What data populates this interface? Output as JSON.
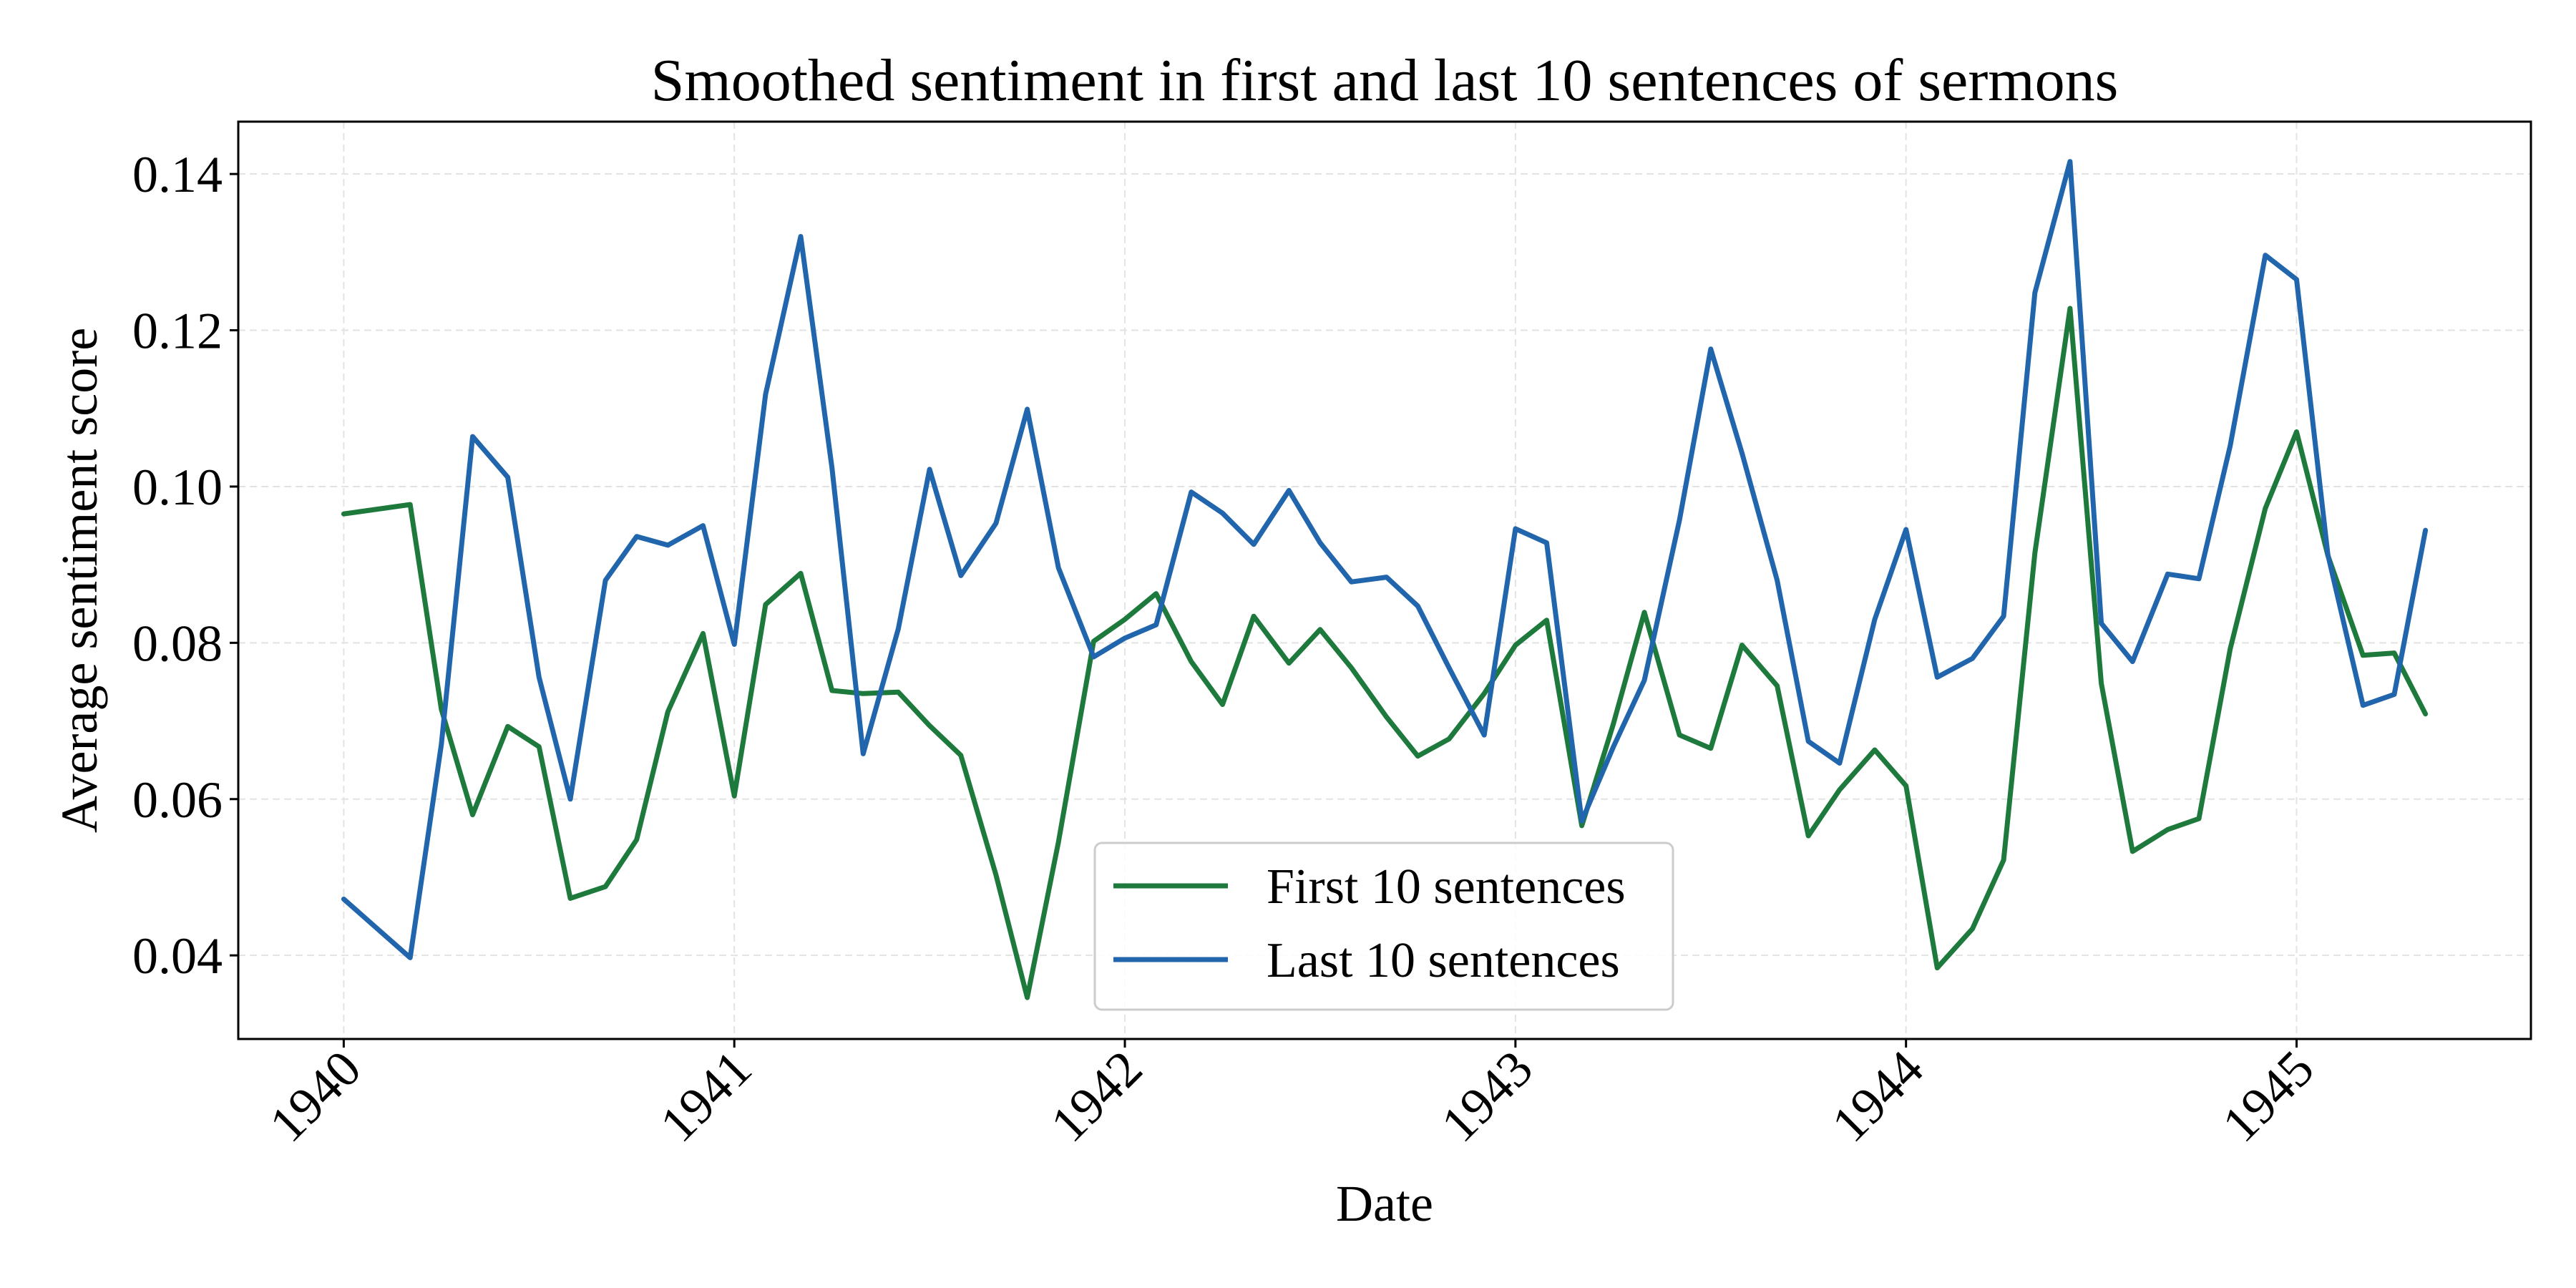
{
  "chart_data": {
    "type": "line",
    "title": "Smoothed sentiment in first and last 10 sentences of sermons",
    "xlabel": "Date",
    "ylabel": "Average sentiment score",
    "xlim": [
      1939.73,
      1945.6
    ],
    "ylim": [
      0.0293,
      0.1467
    ],
    "x_ticks": [
      1940,
      1941,
      1942,
      1943,
      1944,
      1945
    ],
    "x_tick_labels": [
      "1940",
      "1941",
      "1942",
      "1943",
      "1944",
      "1945"
    ],
    "y_ticks": [
      0.04,
      0.06,
      0.08,
      0.1,
      0.12,
      0.14
    ],
    "y_tick_labels": [
      "0.04",
      "0.06",
      "0.08",
      "0.10",
      "0.12",
      "0.14"
    ],
    "grid": true,
    "legend_position": "lower center",
    "colors": {
      "first": "#1e7a3c",
      "last": "#2166ac"
    },
    "x": [
      1940.0,
      1940.17,
      1940.25,
      1940.33,
      1940.42,
      1940.5,
      1940.58,
      1940.67,
      1940.75,
      1940.83,
      1940.92,
      1941.0,
      1941.08,
      1941.17,
      1941.25,
      1941.33,
      1941.42,
      1941.5,
      1941.58,
      1941.67,
      1941.75,
      1941.83,
      1941.92,
      1942.0,
      1942.08,
      1942.17,
      1942.25,
      1942.33,
      1942.42,
      1942.5,
      1942.58,
      1942.67,
      1942.75,
      1942.83,
      1942.92,
      1943.0,
      1943.08,
      1943.17,
      1943.25,
      1943.33,
      1943.42,
      1943.5,
      1943.58,
      1943.67,
      1943.75,
      1943.83,
      1943.92,
      1944.0,
      1944.08,
      1944.17,
      1944.25,
      1944.33,
      1944.42,
      1944.5,
      1944.58,
      1944.67,
      1944.75,
      1944.83,
      1944.92,
      1945.0,
      1945.08,
      1945.17,
      1945.25,
      1945.33
    ],
    "series": [
      {
        "name": "First 10 sentences",
        "color": "#1e7a3c",
        "values": [
          0.0965,
          0.0977,
          0.0715,
          0.058,
          0.0693,
          0.0667,
          0.0473,
          0.0488,
          0.0548,
          0.0712,
          0.0812,
          0.0604,
          0.0849,
          0.0889,
          0.0739,
          0.0735,
          0.0737,
          0.0694,
          0.0656,
          0.0503,
          0.0346,
          0.0545,
          0.0802,
          0.083,
          0.0863,
          0.0776,
          0.0721,
          0.0834,
          0.0774,
          0.0817,
          0.0768,
          0.0705,
          0.0655,
          0.0677,
          0.0735,
          0.0797,
          0.0829,
          0.0566,
          0.0695,
          0.0839,
          0.0682,
          0.0665,
          0.0797,
          0.0745,
          0.0553,
          0.0612,
          0.0663,
          0.0617,
          0.0384,
          0.0434,
          0.0522,
          0.0915,
          0.1228,
          0.0748,
          0.0533,
          0.0561,
          0.0575,
          0.0792,
          0.0972,
          0.107,
          0.0912,
          0.0784,
          0.0787,
          0.0709
        ]
      },
      {
        "name": "Last 10 sentences",
        "color": "#2166ac",
        "values": [
          0.0472,
          0.0397,
          0.067,
          0.1064,
          0.1012,
          0.0756,
          0.06,
          0.088,
          0.0936,
          0.0925,
          0.095,
          0.0798,
          0.1118,
          0.132,
          0.1024,
          0.0658,
          0.0818,
          0.1022,
          0.0886,
          0.0953,
          0.1099,
          0.0896,
          0.0782,
          0.0806,
          0.0823,
          0.0993,
          0.0966,
          0.0926,
          0.0995,
          0.0928,
          0.0878,
          0.0884,
          0.0847,
          0.0768,
          0.0682,
          0.0946,
          0.0928,
          0.0572,
          0.0666,
          0.0752,
          0.0957,
          0.1176,
          0.1043,
          0.088,
          0.0674,
          0.0646,
          0.083,
          0.0945,
          0.0756,
          0.078,
          0.0834,
          0.1248,
          0.1416,
          0.0825,
          0.0776,
          0.0888,
          0.0882,
          0.1052,
          0.1296,
          0.1265,
          0.0913,
          0.072,
          0.0734,
          0.0944
        ]
      }
    ]
  }
}
